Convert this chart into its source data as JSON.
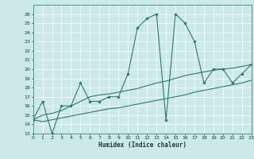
{
  "xlabel": "Humidex (Indice chaleur)",
  "bg_color": "#cce8e8",
  "line_color": "#2d7a6b",
  "grid_color": "#ffffff",
  "x_values": [
    0,
    1,
    2,
    3,
    4,
    5,
    6,
    7,
    8,
    9,
    10,
    11,
    12,
    13,
    14,
    15,
    16,
    17,
    18,
    19,
    20,
    21,
    22,
    23
  ],
  "y_main": [
    14.5,
    16.5,
    13.0,
    16.0,
    16.0,
    18.5,
    16.5,
    16.5,
    17.0,
    17.0,
    19.5,
    24.5,
    25.5,
    26.0,
    14.5,
    26.0,
    25.0,
    23.0,
    18.5,
    20.0,
    20.0,
    18.5,
    19.5,
    20.5
  ],
  "y_upper": [
    14.5,
    15.0,
    15.2,
    15.5,
    16.0,
    16.5,
    17.0,
    17.2,
    17.3,
    17.5,
    17.7,
    17.9,
    18.2,
    18.5,
    18.7,
    19.0,
    19.3,
    19.5,
    19.7,
    19.9,
    20.0,
    20.1,
    20.3,
    20.5
  ],
  "y_lower": [
    14.5,
    14.3,
    14.5,
    14.7,
    14.9,
    15.1,
    15.3,
    15.5,
    15.7,
    15.8,
    16.0,
    16.2,
    16.4,
    16.6,
    16.8,
    17.0,
    17.2,
    17.5,
    17.7,
    17.9,
    18.1,
    18.3,
    18.5,
    18.8
  ],
  "ylim": [
    13,
    27
  ],
  "xlim": [
    0,
    23
  ],
  "yticks": [
    13,
    14,
    15,
    16,
    17,
    18,
    19,
    20,
    21,
    22,
    23,
    24,
    25,
    26
  ],
  "xticks": [
    0,
    1,
    2,
    3,
    4,
    5,
    6,
    7,
    8,
    9,
    10,
    11,
    12,
    13,
    14,
    15,
    16,
    17,
    18,
    19,
    20,
    21,
    22,
    23
  ]
}
